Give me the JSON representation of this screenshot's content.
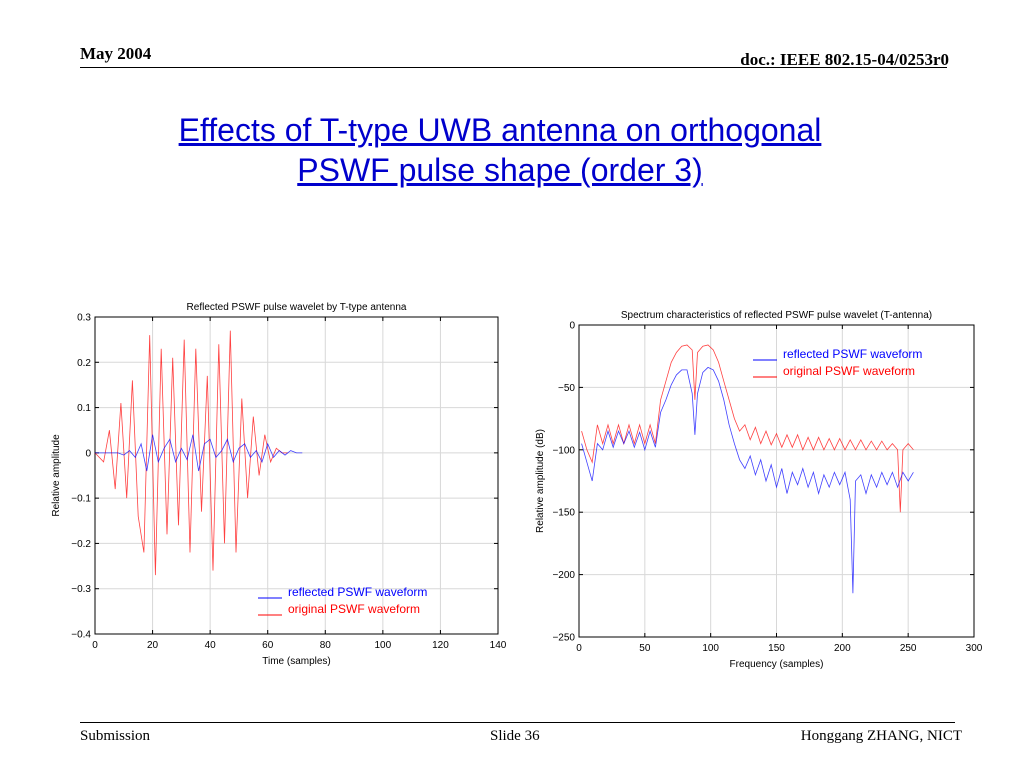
{
  "header": {
    "date": "May 2004",
    "doc": "doc.: IEEE 802.15-04/0253r0"
  },
  "slide": {
    "title_line1": "Effects of T-type UWB antenna on orthogonal",
    "title_line2": "PSWF pulse shape (order 3)"
  },
  "footer": {
    "left": "Submission",
    "center": "Slide 36",
    "right": "Honggang ZHANG, NICT"
  },
  "colors": {
    "reflected": "#0000ff",
    "original": "#ff0000"
  },
  "chart_data": [
    {
      "type": "line",
      "title": "Reflected PSWF pulse wavelet by T-type antenna",
      "xlabel": "Time (samples)",
      "ylabel": "Relative amplitude",
      "xlim": [
        0,
        140
      ],
      "ylim": [
        -0.4,
        0.3
      ],
      "xticks": [
        "0",
        "20",
        "40",
        "60",
        "80",
        "100",
        "120",
        "140"
      ],
      "yticks": [
        "0.3",
        "0.2",
        "0.1",
        "0",
        "−0.1",
        "−0.2",
        "−0.3",
        "−0.4"
      ],
      "grid": true,
      "legend_position": "bottom-right",
      "series": [
        {
          "name": "reflected PSWF waveform",
          "color": "#0000ff",
          "x": [
            0,
            4,
            8,
            10,
            12,
            14,
            16,
            18,
            20,
            22,
            24,
            26,
            28,
            30,
            32,
            34,
            36,
            38,
            40,
            42,
            44,
            46,
            48,
            50,
            52,
            54,
            56,
            58,
            60,
            62,
            64,
            66,
            68,
            70,
            72
          ],
          "values": [
            0,
            0,
            0,
            -0.005,
            0.005,
            -0.01,
            0.02,
            -0.04,
            0.04,
            -0.02,
            0.01,
            0.03,
            -0.02,
            0.01,
            -0.015,
            0.04,
            -0.04,
            0.02,
            0.03,
            -0.01,
            0.005,
            0.03,
            -0.02,
            0.01,
            0.02,
            -0.01,
            0.005,
            -0.02,
            0.02,
            -0.01,
            0.005,
            -0.005,
            0.005,
            0,
            0
          ]
        },
        {
          "name": "original PSWF waveform",
          "color": "#ff0000",
          "x": [
            0,
            3,
            5,
            7,
            9,
            11,
            13,
            15,
            17,
            19,
            21,
            23,
            25,
            27,
            29,
            31,
            33,
            35,
            37,
            39,
            41,
            43,
            45,
            47,
            49,
            51,
            53,
            55,
            57,
            59,
            61,
            63,
            65,
            67
          ],
          "values": [
            0,
            -0.02,
            0.05,
            -0.08,
            0.11,
            -0.1,
            0.16,
            -0.14,
            -0.22,
            0.26,
            -0.27,
            0.23,
            -0.18,
            0.21,
            -0.16,
            0.25,
            -0.22,
            0.23,
            -0.13,
            0.17,
            -0.26,
            0.24,
            -0.2,
            0.27,
            -0.22,
            0.12,
            -0.1,
            0.08,
            -0.05,
            0.04,
            -0.02,
            0.01,
            0,
            0
          ]
        }
      ]
    },
    {
      "type": "line",
      "title": "Spectrum characteristics of reflected PSWF pulse wavelet (T-antenna)",
      "xlabel": "Frequency (samples)",
      "ylabel": "Relative amplitude (dB)",
      "xlim": [
        0,
        300
      ],
      "ylim": [
        -250,
        0
      ],
      "xticks": [
        "0",
        "50",
        "100",
        "150",
        "200",
        "250",
        "300"
      ],
      "yticks": [
        "0",
        "−50",
        "−100",
        "−150",
        "−200",
        "−250"
      ],
      "grid": true,
      "legend_position": "top-right",
      "series": [
        {
          "name": "reflected PSWF waveform",
          "color": "#0000ff",
          "x": [
            2,
            6,
            10,
            14,
            18,
            22,
            26,
            30,
            34,
            38,
            42,
            46,
            50,
            54,
            58,
            62,
            66,
            70,
            74,
            78,
            82,
            86,
            88,
            90,
            94,
            98,
            102,
            106,
            110,
            114,
            118,
            122,
            126,
            130,
            134,
            138,
            142,
            146,
            150,
            154,
            158,
            162,
            166,
            170,
            174,
            178,
            182,
            186,
            190,
            194,
            198,
            202,
            206,
            208,
            210,
            214,
            218,
            222,
            226,
            230,
            234,
            238,
            242,
            246,
            250,
            254
          ],
          "values": [
            -95,
            -110,
            -125,
            -95,
            -100,
            -85,
            -98,
            -85,
            -95,
            -85,
            -98,
            -86,
            -100,
            -85,
            -98,
            -70,
            -60,
            -48,
            -40,
            -36,
            -36,
            -55,
            -88,
            -55,
            -38,
            -34,
            -36,
            -45,
            -60,
            -80,
            -95,
            -108,
            -115,
            -105,
            -120,
            -108,
            -125,
            -112,
            -130,
            -115,
            -135,
            -118,
            -128,
            -115,
            -130,
            -118,
            -135,
            -120,
            -130,
            -118,
            -128,
            -118,
            -140,
            -215,
            -125,
            -120,
            -135,
            -120,
            -130,
            -118,
            -128,
            -118,
            -130,
            -118,
            -125,
            -118
          ]
        },
        {
          "name": "original PSWF waveform",
          "color": "#ff0000",
          "x": [
            2,
            6,
            10,
            14,
            18,
            22,
            26,
            30,
            34,
            38,
            42,
            46,
            50,
            54,
            58,
            62,
            66,
            70,
            74,
            78,
            82,
            86,
            88,
            90,
            94,
            98,
            102,
            106,
            110,
            114,
            118,
            122,
            126,
            130,
            134,
            138,
            142,
            146,
            150,
            154,
            158,
            162,
            166,
            170,
            174,
            178,
            182,
            186,
            190,
            194,
            198,
            202,
            206,
            210,
            214,
            218,
            222,
            226,
            230,
            234,
            238,
            242,
            244,
            246,
            250,
            254
          ],
          "values": [
            -85,
            -100,
            -110,
            -80,
            -95,
            -80,
            -95,
            -80,
            -95,
            -80,
            -95,
            -80,
            -95,
            -80,
            -95,
            -60,
            -45,
            -30,
            -22,
            -17,
            -16,
            -20,
            -60,
            -22,
            -17,
            -16,
            -20,
            -30,
            -45,
            -60,
            -75,
            -85,
            -80,
            -92,
            -82,
            -95,
            -85,
            -96,
            -87,
            -98,
            -88,
            -98,
            -88,
            -100,
            -90,
            -100,
            -90,
            -100,
            -91,
            -100,
            -91,
            -100,
            -92,
            -100,
            -92,
            -100,
            -93,
            -100,
            -93,
            -100,
            -95,
            -100,
            -150,
            -100,
            -95,
            -100
          ]
        }
      ]
    }
  ]
}
